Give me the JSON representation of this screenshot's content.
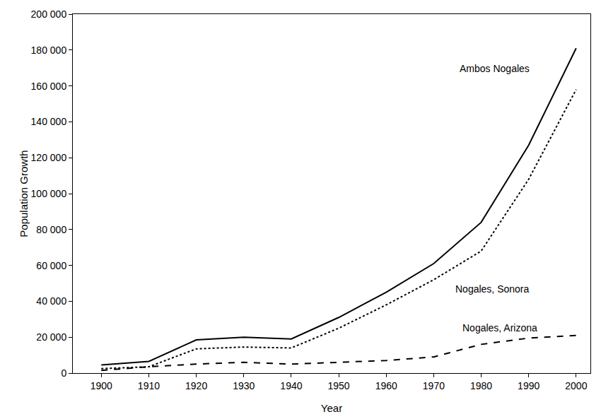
{
  "chart_data": {
    "type": "line",
    "x_label": "Year",
    "y_label": "Population Growth",
    "x": [
      1900,
      1910,
      1920,
      1930,
      1940,
      1950,
      1960,
      1970,
      1980,
      1990,
      2000
    ],
    "series": [
      {
        "name": "Ambos Nogales",
        "color": "#000000",
        "line_style": "solid",
        "values": [
          4500,
          6500,
          18500,
          20000,
          19000,
          31000,
          45000,
          61000,
          84000,
          127000,
          181000
        ]
      },
      {
        "name": "Nogales, Sonora",
        "color": "#000000",
        "line_style": "dotted",
        "values": [
          2500,
          3500,
          13500,
          14500,
          14000,
          25000,
          38000,
          52000,
          68000,
          108000,
          158000
        ]
      },
      {
        "name": "Nogales, Arizona",
        "color": "#000000",
        "line_style": "dashed",
        "values": [
          1500,
          3500,
          5000,
          6000,
          5000,
          6000,
          7000,
          9000,
          16000,
          19500,
          21000
        ]
      }
    ],
    "xlim": [
      1894,
      2003
    ],
    "xticks": [
      1900,
      1910,
      1920,
      1930,
      1940,
      1950,
      1960,
      1970,
      1980,
      1990,
      2000
    ],
    "ylim": [
      0,
      200000
    ],
    "yticks": [
      0,
      {
        "value": 20000,
        "label": "20 000"
      },
      {
        "value": 40000,
        "label": "40 000"
      },
      {
        "value": 60000,
        "label": "60 000"
      },
      {
        "value": 80000,
        "label": "80 000"
      },
      {
        "value": 100000,
        "label": "100 000"
      },
      {
        "value": 120000,
        "label": "120 000"
      },
      {
        "value": 140000,
        "label": "140 000"
      },
      {
        "value": 160000,
        "label": "160 000"
      },
      {
        "value": 180000,
        "label": "180 000"
      },
      {
        "value": 200000,
        "label": "200 000"
      }
    ],
    "grid": false
  }
}
